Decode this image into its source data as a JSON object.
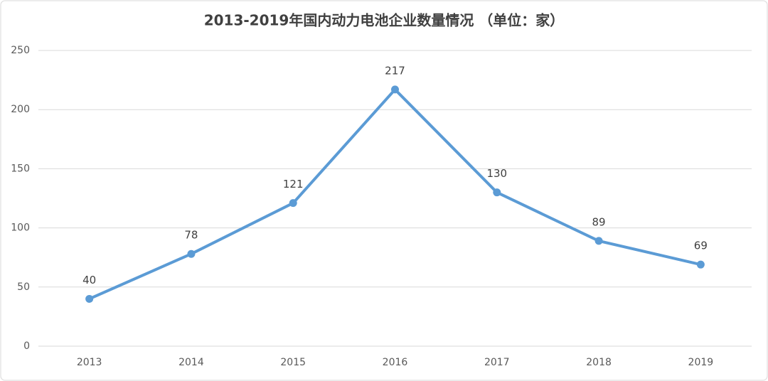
{
  "chart_data": {
    "type": "line",
    "title": "2013-2019年国内动力电池企业数量情况 （单位：家）",
    "categories": [
      "2013",
      "2014",
      "2015",
      "2016",
      "2017",
      "2018",
      "2019"
    ],
    "values": [
      40,
      78,
      121,
      217,
      130,
      89,
      69
    ],
    "color": "#5b9bd5",
    "ylim": [
      0,
      250
    ],
    "yticks": [
      0,
      50,
      100,
      150,
      200,
      250
    ],
    "grid": true
  }
}
